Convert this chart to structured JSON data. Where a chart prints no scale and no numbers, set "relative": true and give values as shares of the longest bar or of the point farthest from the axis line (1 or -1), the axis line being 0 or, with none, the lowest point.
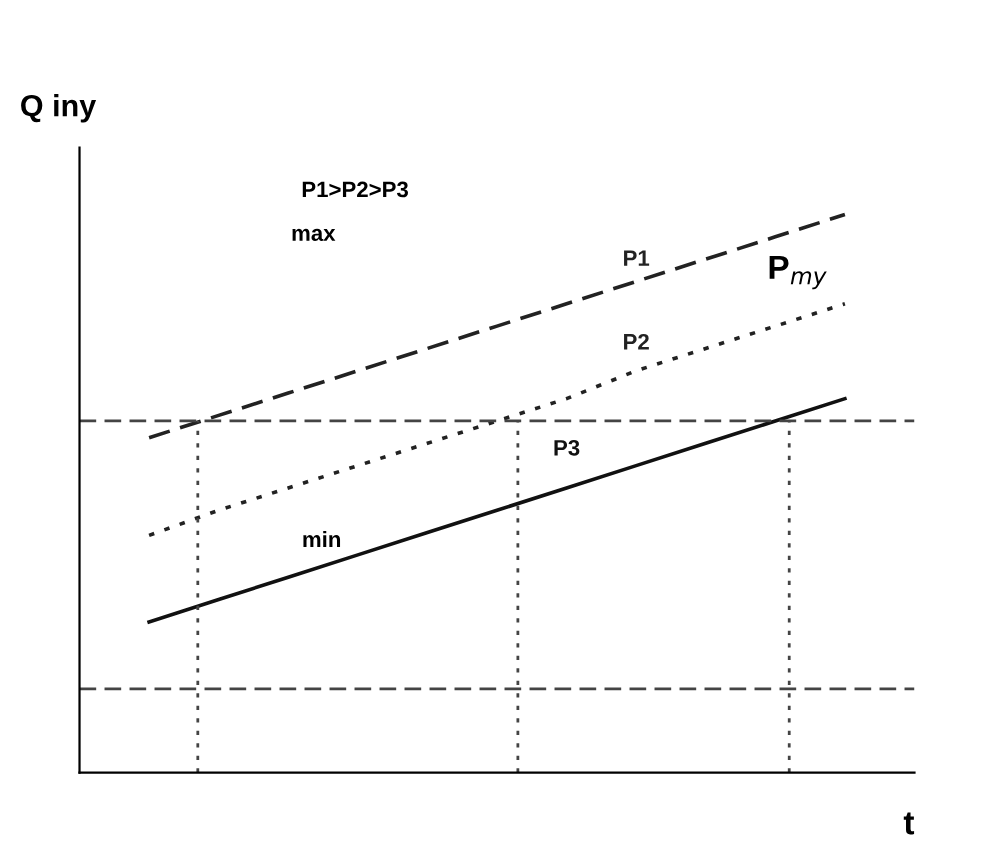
{
  "chart_data": {
    "type": "line",
    "relative": true,
    "xlabel": "t",
    "ylabel": "Q iny",
    "grid": false,
    "legend": false,
    "categories": [
      null,
      null,
      null,
      null,
      null,
      null,
      null,
      null,
      null,
      null,
      null
    ],
    "series": [
      {
        "name": "P1",
        "color": "#222222",
        "line_style": "dashed",
        "values": [
          0.6,
          0.64,
          0.68,
          0.72,
          0.76,
          0.8,
          0.84,
          0.88,
          0.92,
          0.96,
          1.0
        ]
      },
      {
        "name": "P2",
        "color": "#222222",
        "line_style": "dotted",
        "values": [
          0.425,
          0.47,
          0.51,
          0.55,
          0.59,
          0.63,
          0.67,
          0.72,
          0.76,
          0.8,
          0.84
        ]
      },
      {
        "name": "P3",
        "color": "#111111",
        "line_style": "solid",
        "values": [
          0.27,
          0.31,
          0.35,
          0.39,
          0.43,
          0.47,
          0.51,
          0.55,
          0.59,
          0.63,
          0.67
        ]
      }
    ],
    "ref_lines": [
      {
        "axis": "y",
        "value": 0.63,
        "color": "#444444",
        "line_style": "dashed"
      },
      {
        "axis": "y",
        "value": 0.15,
        "color": "#444444",
        "line_style": "dashed"
      }
    ],
    "annotations": [
      "P1>P2>P3",
      "max",
      "min",
      "P$_{my}$"
    ]
  }
}
